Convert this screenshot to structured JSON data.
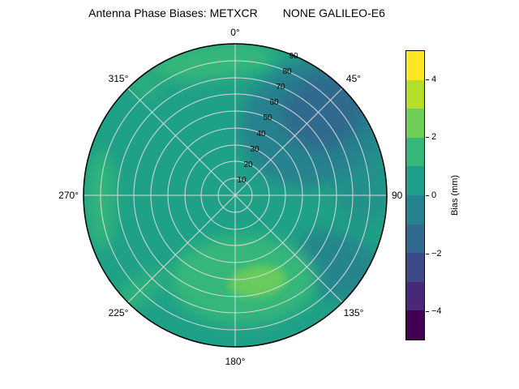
{
  "title": "Antenna Phase Biases: METXCR        NONE GALILEO-E6",
  "polar": {
    "azimuth_tick_labels": [
      "0°",
      "45°",
      "90",
      "135°",
      "180°",
      "225°",
      "270°",
      "315°"
    ],
    "radial_tick_labels": [
      "10",
      "20",
      "30",
      "40",
      "50",
      "60",
      "70",
      "80",
      "90"
    ]
  },
  "colorbar": {
    "label": "Bias (mm)",
    "tick_labels": [
      "4",
      "2",
      "0",
      "−2",
      "−4"
    ],
    "segments_top_to_bottom": [
      "#fde725",
      "#b5de2b",
      "#6ece58",
      "#35b779",
      "#1f9e89",
      "#26828e",
      "#31688e",
      "#3e4989",
      "#482878",
      "#440154"
    ]
  },
  "colors": {
    "base": "#1fa187",
    "green": "#35b779",
    "bright_green": "#6ece58",
    "mid_dark_teal": "#26828e",
    "dark_blue": "#31688e",
    "grid": "#d9d9d9"
  },
  "chart_data": {
    "type": "heatmap",
    "projection": "polar",
    "title": "Antenna Phase Biases: METXCR        NONE GALILEO-E6",
    "signal": "GALILEO-E6",
    "azimuth_ticks_deg": [
      0,
      45,
      90,
      135,
      180,
      225,
      270,
      315
    ],
    "azimuth_direction": "clockwise-from-north",
    "zenith_ticks": [
      10,
      20,
      30,
      40,
      50,
      60,
      70,
      80,
      90
    ],
    "zenith_range": [
      0,
      90
    ],
    "value_label": "Bias (mm)",
    "value_range": [
      -5,
      5
    ],
    "contour_levels": [
      -5,
      -4,
      -3,
      -2,
      -1,
      0,
      1,
      2,
      3,
      4,
      5
    ],
    "colormap": "viridis",
    "colorbar_ticks": [
      4,
      2,
      0,
      -2,
      -4
    ],
    "grid": true,
    "features": [
      {
        "azimuth_deg": 50,
        "zenith_deg": 55,
        "bias_mm": -2,
        "description": "dark blue depression, upper-right quadrant"
      },
      {
        "azimuth_deg": 55,
        "zenith_deg": 60,
        "bias_mm": -1,
        "description": "broad darker teal lobe surrounding the depression"
      },
      {
        "azimuth_deg": 120,
        "zenith_deg": 70,
        "bias_mm": -1,
        "description": "darker teal patch lower-right"
      },
      {
        "azimuth_deg": 185,
        "zenith_deg": 52,
        "bias_mm": 2.5,
        "description": "bright green maximum, bottom center"
      },
      {
        "azimuth_deg": 190,
        "zenith_deg": 55,
        "bias_mm": 2,
        "description": "broad green elevated region across bottom"
      },
      {
        "azimuth_deg": 272,
        "zenith_deg": 82,
        "bias_mm": 1.5,
        "description": "green streak along left edge"
      },
      {
        "azimuth_deg": 350,
        "zenith_deg": 80,
        "bias_mm": 1.5,
        "description": "green band near top edge"
      },
      {
        "azimuth_deg": 315,
        "zenith_deg": 85,
        "bias_mm": 1.5,
        "description": "small green patch upper-left edge"
      },
      {
        "azimuth_deg": 225,
        "zenith_deg": 85,
        "bias_mm": 1.5,
        "description": "green band lower-left edge"
      },
      {
        "azimuth_deg": 0,
        "zenith_deg": 20,
        "bias_mm": 0.5,
        "description": "background level over most of dome"
      }
    ]
  }
}
